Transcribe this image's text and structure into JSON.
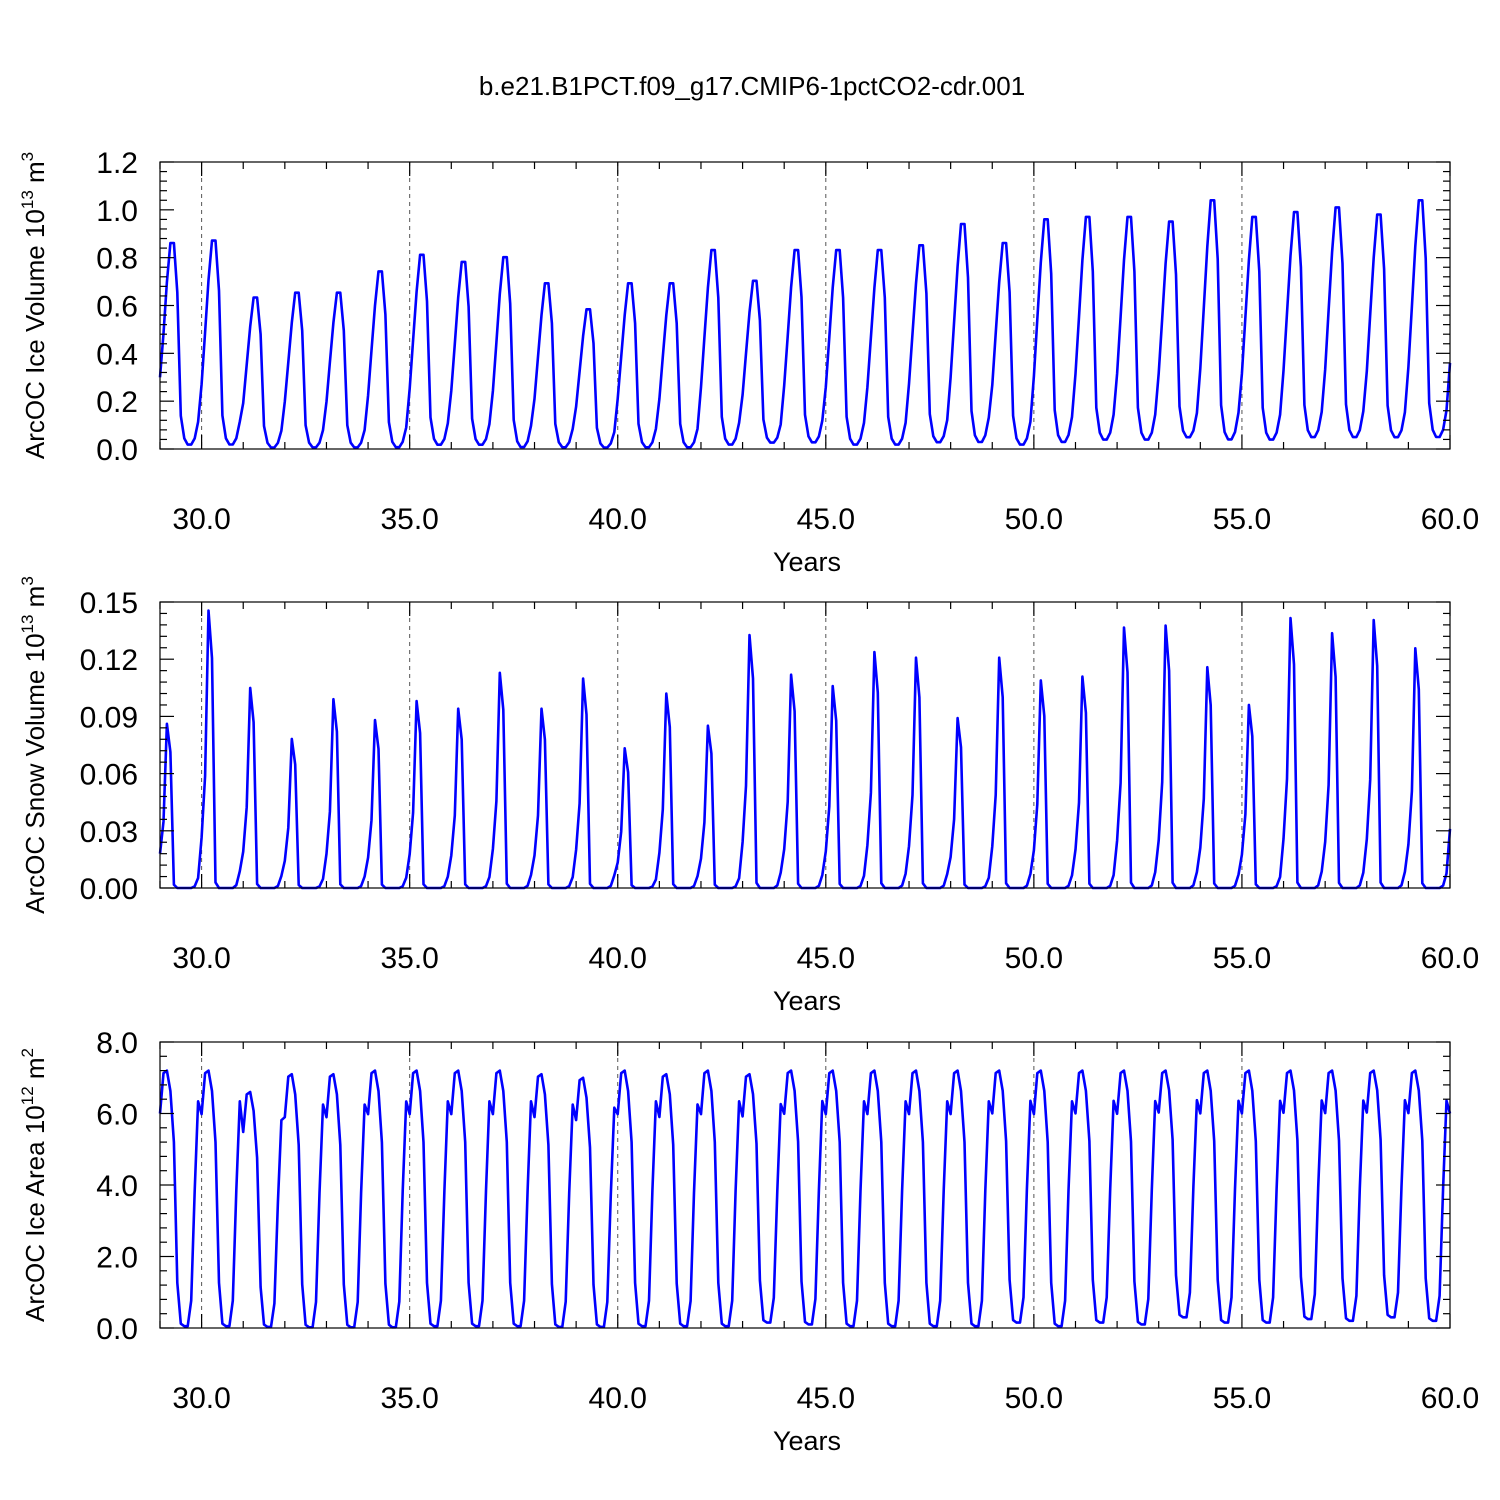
{
  "figure_title": "b.e21.B1PCT.f09_g17.CMIP6-1pctCO2-cdr.001",
  "line_color": "#0000ff",
  "chart_data": [
    {
      "type": "line",
      "title": "",
      "xlabel": "Years",
      "ylabel": {
        "text": "ArcOC Ice Volume 10",
        "exp": "13",
        "unit": " m",
        "unit_exp": "3"
      },
      "xlim": [
        29.0,
        60.0
      ],
      "ylim": [
        0.0,
        1.2
      ],
      "xticks": [
        30.0,
        35.0,
        40.0,
        45.0,
        50.0,
        55.0,
        60.0
      ],
      "xtick_labels": [
        "30.0",
        "35.0",
        "40.0",
        "45.0",
        "50.0",
        "55.0",
        "60.0"
      ],
      "yticks": [
        0.0,
        0.2,
        0.4,
        0.6,
        0.8,
        1.0,
        1.2
      ],
      "ytick_labels": [
        "0.0",
        "0.2",
        "0.4",
        "0.6",
        "0.8",
        "1.0",
        "1.2"
      ],
      "grid": "dashed vertical lines at major x ticks",
      "monthly_pattern": [
        0.3,
        0.55,
        0.8,
        0.99,
        0.99,
        0.75,
        0.15,
        0.04,
        0.01,
        0.01,
        0.04,
        0.12
      ],
      "annual_peaks": [
        0.87,
        0.88,
        0.64,
        0.66,
        0.66,
        0.75,
        0.82,
        0.79,
        0.81,
        0.7,
        0.59,
        0.7,
        0.7,
        0.84,
        0.71,
        0.84,
        0.84,
        0.84,
        0.86,
        0.95,
        0.87,
        0.97,
        0.98,
        0.98,
        0.96,
        1.05,
        0.98,
        1.0,
        1.02,
        0.99,
        1.05
      ],
      "annual_minima": [
        0.01,
        0.01,
        0.0,
        0.0,
        0.0,
        0.0,
        0.01,
        0.01,
        0.0,
        0.0,
        0.0,
        0.0,
        0.0,
        0.01,
        0.02,
        0.02,
        0.01,
        0.01,
        0.02,
        0.02,
        0.01,
        0.02,
        0.03,
        0.03,
        0.04,
        0.03,
        0.03,
        0.04,
        0.04,
        0.04,
        0.04
      ],
      "start_value": 0.3,
      "end_value": 0.36
    },
    {
      "type": "line",
      "title": "",
      "xlabel": "Years",
      "ylabel": {
        "text": "ArcOC Snow Volume 10",
        "exp": "13",
        "unit": " m",
        "unit_exp": "3"
      },
      "xlim": [
        29.0,
        60.0
      ],
      "ylim": [
        0.0,
        0.15
      ],
      "xticks": [
        30.0,
        35.0,
        40.0,
        45.0,
        50.0,
        55.0,
        60.0
      ],
      "xtick_labels": [
        "30.0",
        "35.0",
        "40.0",
        "45.0",
        "50.0",
        "55.0",
        "60.0"
      ],
      "yticks": [
        0.0,
        0.03,
        0.06,
        0.09,
        0.12,
        0.15
      ],
      "ytick_labels": [
        "0.00",
        "0.03",
        "0.06",
        "0.09",
        "0.12",
        "0.15"
      ],
      "grid": "dashed vertical lines at major x ticks",
      "monthly_pattern": [
        0.18,
        0.4,
        0.99,
        0.82,
        0.02,
        0.0,
        0.0,
        0.0,
        0.0,
        0.0,
        0.01,
        0.06
      ],
      "annual_peaks": [
        0.087,
        0.147,
        0.106,
        0.079,
        0.1,
        0.089,
        0.099,
        0.095,
        0.114,
        0.095,
        0.111,
        0.074,
        0.103,
        0.086,
        0.134,
        0.113,
        0.107,
        0.125,
        0.122,
        0.09,
        0.122,
        0.11,
        0.112,
        0.138,
        0.139,
        0.117,
        0.097,
        0.143,
        0.135,
        0.142,
        0.127
      ],
      "start_value": 0.018,
      "end_value": 0.031
    },
    {
      "type": "line",
      "title": "",
      "xlabel": "Years",
      "ylabel": {
        "text": "ArcOC Ice Area 10",
        "exp": "12",
        "unit": " m",
        "unit_exp": "2"
      },
      "xlim": [
        29.0,
        60.0
      ],
      "ylim": [
        0.0,
        8.0
      ],
      "xticks": [
        30.0,
        35.0,
        40.0,
        45.0,
        50.0,
        55.0,
        60.0
      ],
      "xtick_labels": [
        "30.0",
        "35.0",
        "40.0",
        "45.0",
        "50.0",
        "55.0",
        "60.0"
      ],
      "yticks": [
        0.0,
        2.0,
        4.0,
        6.0,
        8.0
      ],
      "ytick_labels": [
        "0.0",
        "2.0",
        "4.0",
        "6.0",
        "8.0"
      ],
      "grid": "dashed vertical lines at major x ticks",
      "monthly_pattern": [
        0.83,
        0.99,
        1.0,
        0.92,
        0.72,
        0.17,
        0.01,
        0.0,
        0.0,
        0.1,
        0.53,
        0.88
      ],
      "annual_peaks": [
        7.2,
        7.2,
        6.6,
        7.1,
        7.1,
        7.2,
        7.2,
        7.2,
        7.2,
        7.1,
        7.0,
        7.2,
        7.1,
        7.2,
        7.1,
        7.2,
        7.2,
        7.2,
        7.2,
        7.2,
        7.2,
        7.2,
        7.2,
        7.2,
        7.2,
        7.2,
        7.2,
        7.2,
        7.2,
        7.2,
        7.2
      ],
      "annual_minima": [
        0.05,
        0.05,
        0.03,
        0.02,
        0.02,
        0.02,
        0.05,
        0.05,
        0.05,
        0.03,
        0.03,
        0.05,
        0.05,
        0.05,
        0.15,
        0.1,
        0.05,
        0.05,
        0.05,
        0.05,
        0.15,
        0.05,
        0.15,
        0.1,
        0.3,
        0.15,
        0.15,
        0.25,
        0.2,
        0.3,
        0.2
      ],
      "start_value": 6.0,
      "end_value": 6.0
    }
  ]
}
